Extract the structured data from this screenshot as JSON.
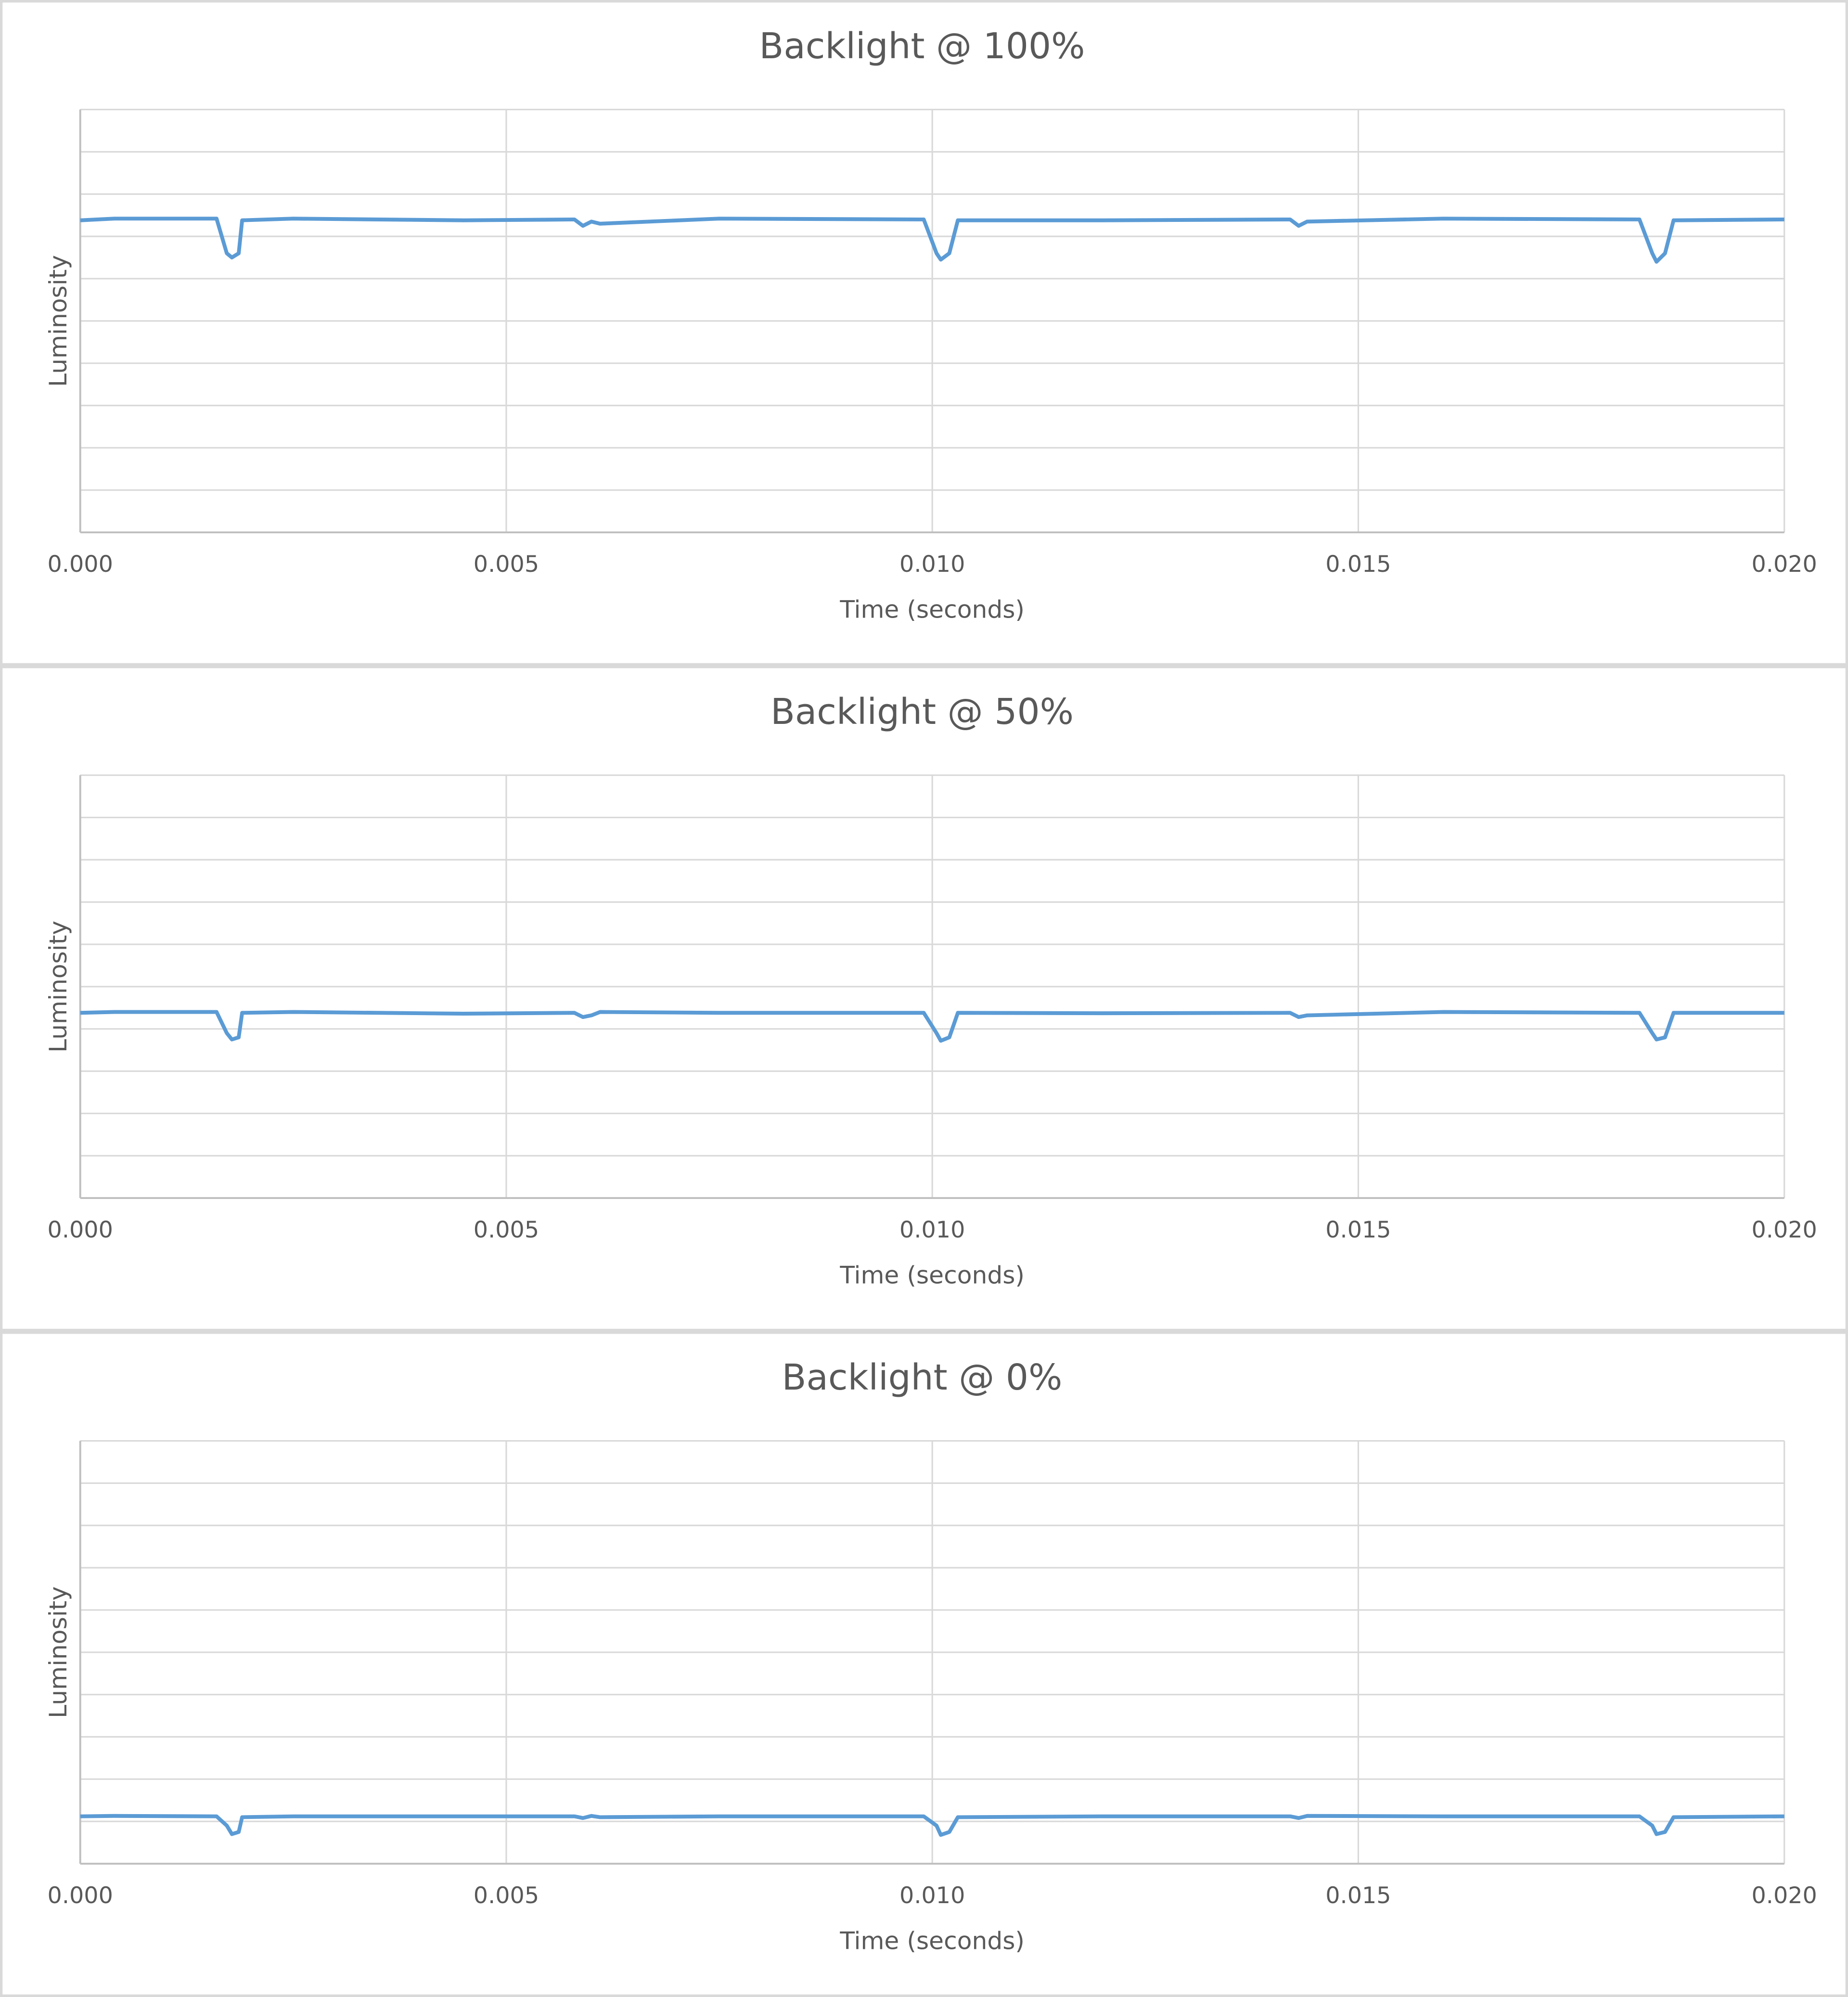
{
  "chart_data": [
    {
      "type": "line",
      "title": "Backlight @ 100%",
      "x_label": "Time (seconds)",
      "y_label": "Luminosity",
      "x": [
        0,
        0.0004,
        0.0016,
        0.00172,
        0.00178,
        0.00186,
        0.0019,
        0.0025,
        0.0045,
        0.0058,
        0.0059,
        0.006,
        0.0061,
        0.0075,
        0.0099,
        0.01005,
        0.0101,
        0.0102,
        0.0103,
        0.012,
        0.0142,
        0.0143,
        0.0144,
        0.016,
        0.0183,
        0.01845,
        0.0185,
        0.0186,
        0.0187,
        0.02
      ],
      "values": [
        7.38,
        7.42,
        7.42,
        6.6,
        6.5,
        6.6,
        7.38,
        7.42,
        7.38,
        7.4,
        7.25,
        7.35,
        7.3,
        7.42,
        7.4,
        6.6,
        6.45,
        6.6,
        7.38,
        7.38,
        7.4,
        7.25,
        7.35,
        7.42,
        7.4,
        6.6,
        6.4,
        6.6,
        7.38,
        7.4
      ],
      "color": "#5b9bd5",
      "xlim": [
        0,
        0.02
      ],
      "xticks": [
        {
          "value": 0,
          "label": "0.000"
        },
        {
          "value": 0.005,
          "label": "0.005"
        },
        {
          "value": 0.01,
          "label": "0.010"
        },
        {
          "value": 0.015,
          "label": "0.015"
        },
        {
          "value": 0.02,
          "label": "0.020"
        }
      ],
      "ylim": [
        0,
        10
      ],
      "yticks": [
        0,
        1,
        2,
        3,
        4,
        5,
        6,
        7,
        8,
        9,
        10
      ],
      "ytick_labels": false,
      "grid": true
    },
    {
      "type": "line",
      "title": "Backlight @ 50%",
      "x_label": "Time (seconds)",
      "y_label": "Luminosity",
      "x": [
        0,
        0.0004,
        0.0016,
        0.00172,
        0.00178,
        0.00186,
        0.0019,
        0.0025,
        0.0045,
        0.0058,
        0.0059,
        0.006,
        0.0061,
        0.0075,
        0.0099,
        0.01005,
        0.0101,
        0.0102,
        0.0103,
        0.012,
        0.0142,
        0.0143,
        0.0144,
        0.016,
        0.0183,
        0.01845,
        0.0185,
        0.0186,
        0.0187,
        0.02
      ],
      "values": [
        4.38,
        4.4,
        4.4,
        3.9,
        3.75,
        3.8,
        4.38,
        4.4,
        4.36,
        4.38,
        4.28,
        4.32,
        4.4,
        4.38,
        4.38,
        3.9,
        3.72,
        3.8,
        4.38,
        4.37,
        4.38,
        4.28,
        4.32,
        4.4,
        4.38,
        3.9,
        3.75,
        3.8,
        4.38,
        4.38
      ],
      "color": "#5b9bd5",
      "xlim": [
        0,
        0.02
      ],
      "xticks": [
        {
          "value": 0,
          "label": "0.000"
        },
        {
          "value": 0.005,
          "label": "0.005"
        },
        {
          "value": 0.01,
          "label": "0.010"
        },
        {
          "value": 0.015,
          "label": "0.015"
        },
        {
          "value": 0.02,
          "label": "0.020"
        }
      ],
      "ylim": [
        0,
        10
      ],
      "yticks": [
        0,
        1,
        2,
        3,
        4,
        5,
        6,
        7,
        8,
        9,
        10
      ],
      "ytick_labels": false,
      "grid": true
    },
    {
      "type": "line",
      "title": "Backlight @ 0%",
      "x_label": "Time (seconds)",
      "y_label": "Luminosity",
      "x": [
        0,
        0.0004,
        0.0016,
        0.00172,
        0.00178,
        0.00186,
        0.0019,
        0.0025,
        0.0045,
        0.0058,
        0.0059,
        0.006,
        0.0061,
        0.0075,
        0.0099,
        0.01005,
        0.0101,
        0.0102,
        0.0103,
        0.012,
        0.0142,
        0.0143,
        0.0144,
        0.016,
        0.0183,
        0.01845,
        0.0185,
        0.0186,
        0.0187,
        0.02
      ],
      "values": [
        1.12,
        1.13,
        1.12,
        0.9,
        0.7,
        0.75,
        1.1,
        1.12,
        1.12,
        1.12,
        1.08,
        1.13,
        1.1,
        1.12,
        1.12,
        0.9,
        0.68,
        0.75,
        1.1,
        1.12,
        1.12,
        1.08,
        1.13,
        1.12,
        1.12,
        0.9,
        0.7,
        0.75,
        1.1,
        1.12
      ],
      "color": "#5b9bd5",
      "xlim": [
        0,
        0.02
      ],
      "xticks": [
        {
          "value": 0,
          "label": "0.000"
        },
        {
          "value": 0.005,
          "label": "0.005"
        },
        {
          "value": 0.01,
          "label": "0.010"
        },
        {
          "value": 0.015,
          "label": "0.015"
        },
        {
          "value": 0.02,
          "label": "0.020"
        }
      ],
      "ylim": [
        0,
        10
      ],
      "yticks": [
        0,
        1,
        2,
        3,
        4,
        5,
        6,
        7,
        8,
        9,
        10
      ],
      "ytick_labels": false,
      "grid": true
    }
  ]
}
